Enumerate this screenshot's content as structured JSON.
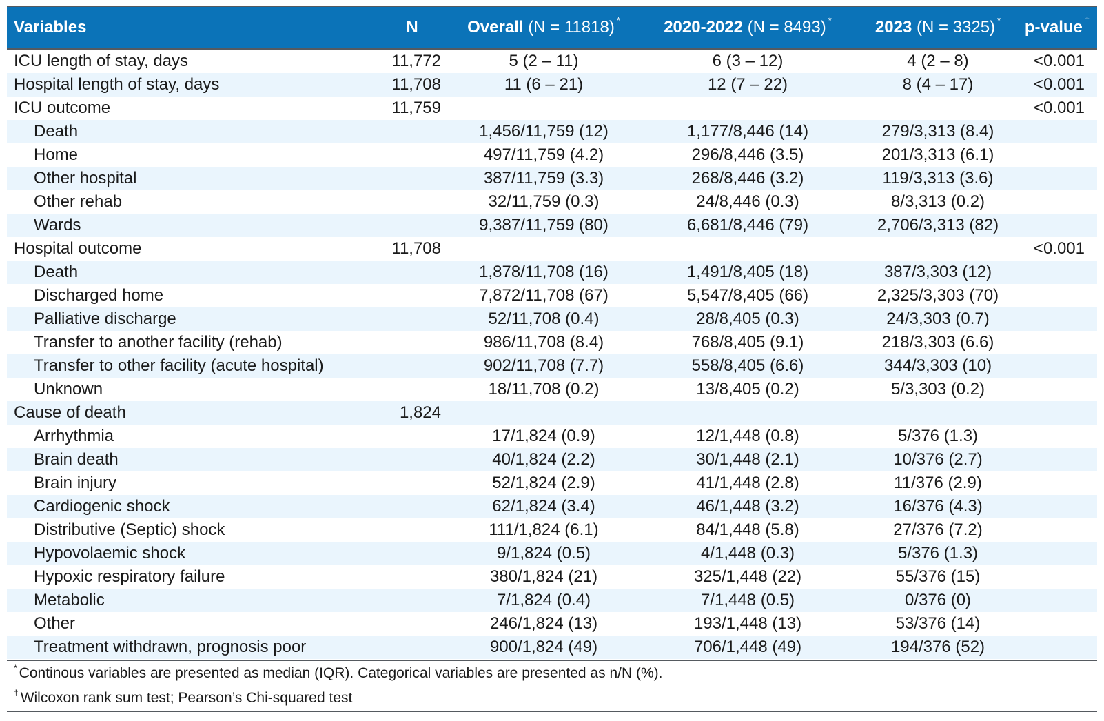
{
  "header": {
    "variables": "Variables",
    "n": "N",
    "overall": "Overall",
    "overall_note": "(N = 11818)",
    "y2020": "2020-2022",
    "y2020_note": "(N = 8493)",
    "y2023": "2023",
    "y2023_note": "(N = 3325)",
    "pvalue": "p-value",
    "star": "*",
    "dagger": "†"
  },
  "rows": [
    {
      "label": "ICU length of stay, days",
      "n": "11,772",
      "overall": "5 (2 – 11)",
      "y2020": "6 (3 – 12)",
      "y2023": "4 (2 – 8)",
      "p": "<0.001"
    },
    {
      "label": "Hospital length of stay, days",
      "n": "11,708",
      "overall": "11 (6 – 21)",
      "y2020": "12 (7 – 22)",
      "y2023": "8 (4 – 17)",
      "p": "<0.001"
    },
    {
      "label": "ICU outcome",
      "n": "11,759",
      "overall": "",
      "y2020": "",
      "y2023": "",
      "p": "<0.001"
    },
    {
      "label": "Death",
      "n": "",
      "overall": "1,456/11,759 (12)",
      "y2020": "1,177/8,446 (14)",
      "y2023": "279/3,313 (8.4)",
      "p": ""
    },
    {
      "label": "Home",
      "n": "",
      "overall": "497/11,759 (4.2)",
      "y2020": "296/8,446 (3.5)",
      "y2023": "201/3,313 (6.1)",
      "p": ""
    },
    {
      "label": "Other hospital",
      "n": "",
      "overall": "387/11,759 (3.3)",
      "y2020": "268/8,446 (3.2)",
      "y2023": "119/3,313 (3.6)",
      "p": ""
    },
    {
      "label": "Other rehab",
      "n": "",
      "overall": "32/11,759 (0.3)",
      "y2020": "24/8,446 (0.3)",
      "y2023": "8/3,313 (0.2)",
      "p": ""
    },
    {
      "label": "Wards",
      "n": "",
      "overall": "9,387/11,759 (80)",
      "y2020": "6,681/8,446 (79)",
      "y2023": "2,706/3,313 (82)",
      "p": ""
    },
    {
      "label": "Hospital outcome",
      "n": "11,708",
      "overall": "",
      "y2020": "",
      "y2023": "",
      "p": "<0.001"
    },
    {
      "label": "Death",
      "n": "",
      "overall": "1,878/11,708 (16)",
      "y2020": "1,491/8,405 (18)",
      "y2023": "387/3,303 (12)",
      "p": ""
    },
    {
      "label": "Discharged home",
      "n": "",
      "overall": "7,872/11,708 (67)",
      "y2020": "5,547/8,405 (66)",
      "y2023": "2,325/3,303 (70)",
      "p": ""
    },
    {
      "label": "Palliative discharge",
      "n": "",
      "overall": "52/11,708 (0.4)",
      "y2020": "28/8,405 (0.3)",
      "y2023": "24/3,303 (0.7)",
      "p": ""
    },
    {
      "label": "Transfer to another facility (rehab)",
      "n": "",
      "overall": "986/11,708 (8.4)",
      "y2020": "768/8,405 (9.1)",
      "y2023": "218/3,303 (6.6)",
      "p": ""
    },
    {
      "label": "Transfer to other facility (acute hospital)",
      "n": "",
      "overall": "902/11,708 (7.7)",
      "y2020": "558/8,405 (6.6)",
      "y2023": "344/3,303 (10)",
      "p": ""
    },
    {
      "label": "Unknown",
      "n": "",
      "overall": "18/11,708 (0.2)",
      "y2020": "13/8,405 (0.2)",
      "y2023": "5/3,303 (0.2)",
      "p": ""
    },
    {
      "label": "Cause of death",
      "n": "1,824",
      "overall": "",
      "y2020": "",
      "y2023": "",
      "p": ""
    },
    {
      "label": "Arrhythmia",
      "n": "",
      "overall": "17/1,824 (0.9)",
      "y2020": "12/1,448 (0.8)",
      "y2023": "5/376 (1.3)",
      "p": ""
    },
    {
      "label": "Brain death",
      "n": "",
      "overall": "40/1,824 (2.2)",
      "y2020": "30/1,448 (2.1)",
      "y2023": "10/376 (2.7)",
      "p": ""
    },
    {
      "label": "Brain injury",
      "n": "",
      "overall": "52/1,824 (2.9)",
      "y2020": "41/1,448 (2.8)",
      "y2023": "11/376 (2.9)",
      "p": ""
    },
    {
      "label": "Cardiogenic shock",
      "n": "",
      "overall": "62/1,824 (3.4)",
      "y2020": "46/1,448 (3.2)",
      "y2023": "16/376 (4.3)",
      "p": ""
    },
    {
      "label": "Distributive (Septic) shock",
      "n": "",
      "overall": "111/1,824 (6.1)",
      "y2020": "84/1,448 (5.8)",
      "y2023": "27/376 (7.2)",
      "p": ""
    },
    {
      "label": "Hypovolaemic shock",
      "n": "",
      "overall": "9/1,824 (0.5)",
      "y2020": "4/1,448 (0.3)",
      "y2023": "5/376 (1.3)",
      "p": ""
    },
    {
      "label": "Hypoxic respiratory failure",
      "n": "",
      "overall": "380/1,824 (21)",
      "y2020": "325/1,448 (22)",
      "y2023": "55/376 (15)",
      "p": ""
    },
    {
      "label": "Metabolic",
      "n": "",
      "overall": "7/1,824 (0.4)",
      "y2020": "7/1,448 (0.5)",
      "y2023": "0/376 (0)",
      "p": ""
    },
    {
      "label": "Other",
      "n": "",
      "overall": "246/1,824 (13)",
      "y2020": "193/1,448 (13)",
      "y2023": "53/376 (14)",
      "p": ""
    },
    {
      "label": "Treatment withdrawn, prognosis poor",
      "n": "",
      "overall": "900/1,824 (49)",
      "y2020": "706/1,448 (49)",
      "y2023": "194/376 (52)",
      "p": ""
    }
  ],
  "footnotes": [
    {
      "mark": "*",
      "text": "Continous variables are presented as median (IQR). Categorical variables are presented as n/N (%)."
    },
    {
      "mark": "†",
      "text": "Wilcoxon rank sum test; Pearson’s Chi-squared test"
    }
  ],
  "colors": {
    "header_bg": "#0b73b8",
    "stripe": "#eaf5fd",
    "rule": "#555a60"
  }
}
